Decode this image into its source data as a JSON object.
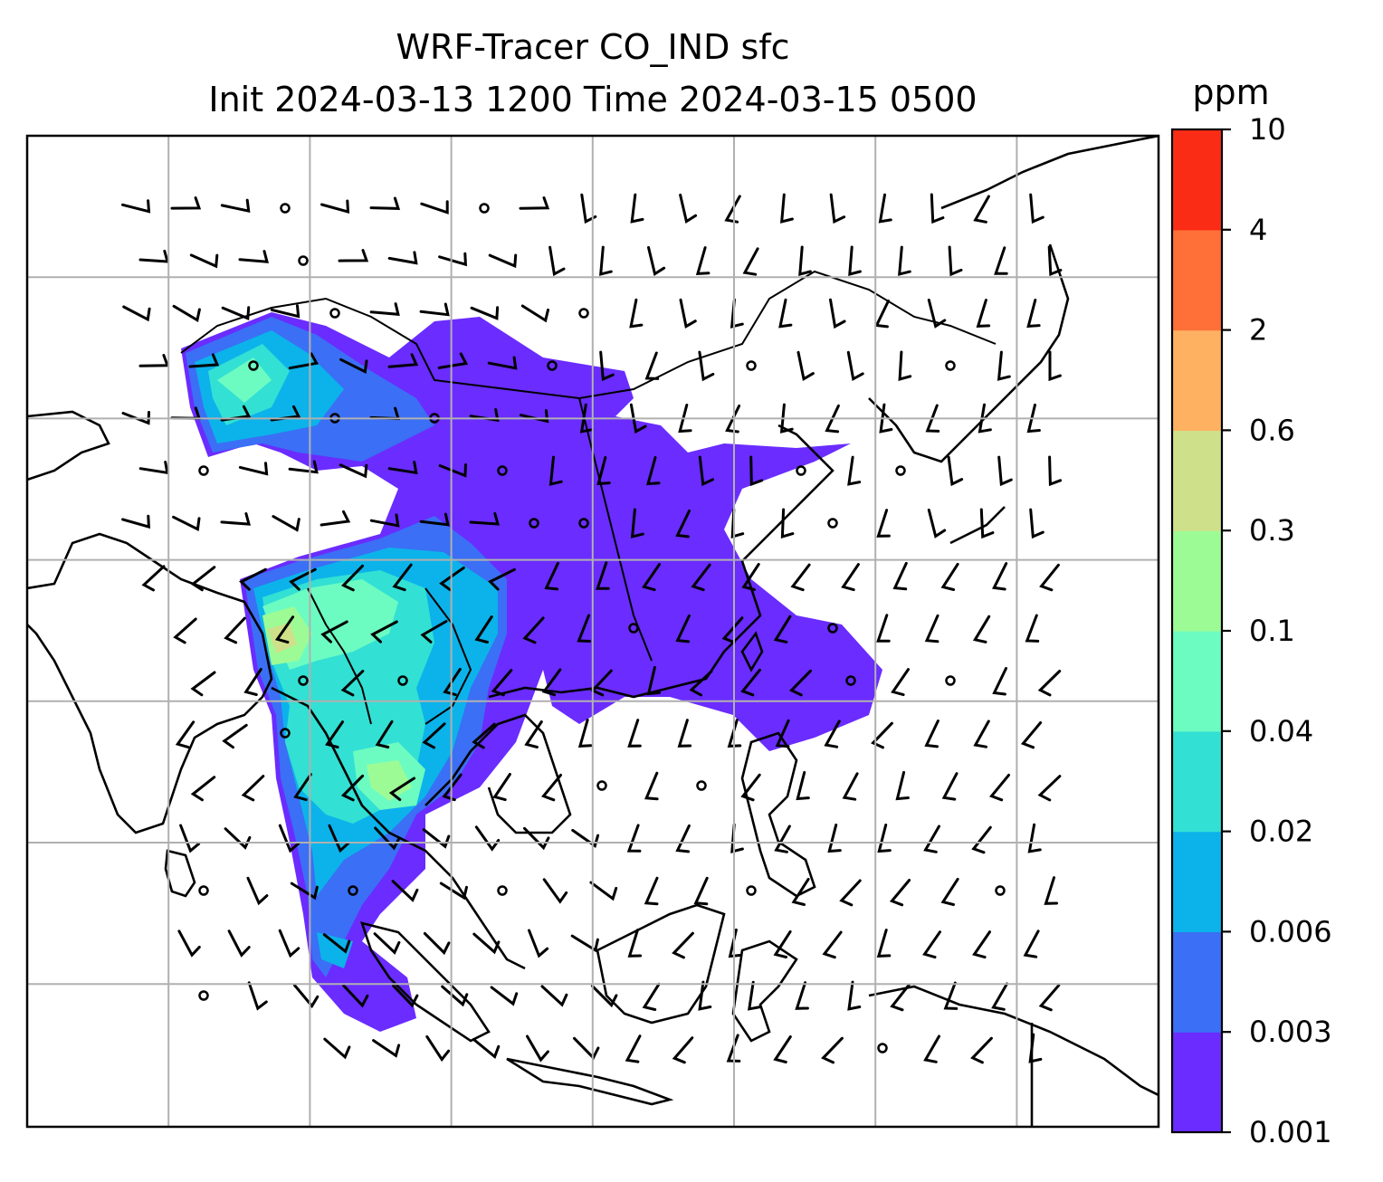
{
  "chart_data": {
    "type": "heatmap",
    "title_line1": "WRF-Tracer CO_IND sfc",
    "title_line2": "Init 2024-03-13 1200 Time 2024-03-15 0500",
    "colorbar": {
      "unit": "ppm",
      "levels": [
        "0.001",
        "0.003",
        "0.006",
        "0.02",
        "0.04",
        "0.1",
        "0.3",
        "0.6",
        "2",
        "4",
        "10"
      ],
      "colors": [
        "#6a2cff",
        "#3b6ff5",
        "#0bb3ea",
        "#33e0d4",
        "#6cfcc1",
        "#9dfb96",
        "#cfe08a",
        "#feb160",
        "#fe7038",
        "#fb2c16"
      ]
    },
    "map": {
      "grid": true,
      "gridlines_x": 7,
      "gridlines_y": 6,
      "coastline_color": "#000000",
      "wind_barbs": true
    }
  }
}
